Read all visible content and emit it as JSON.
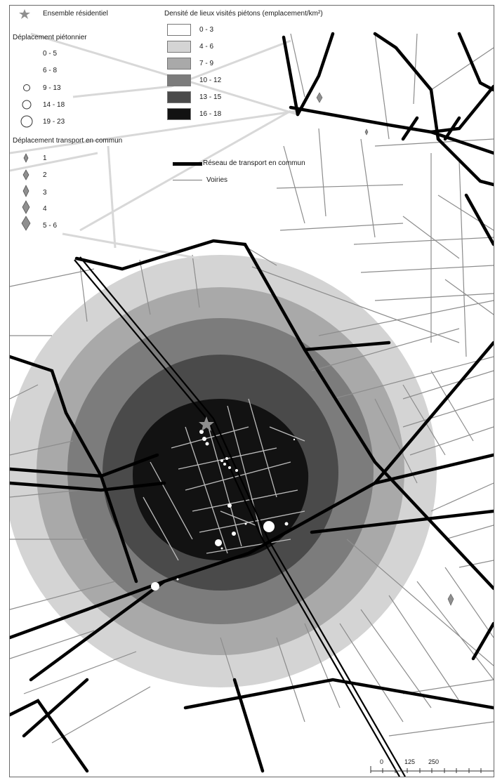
{
  "legend": {
    "residential_label": "Ensemble résidentiel",
    "walk_title": "Déplacement piétonnier",
    "walk_classes": [
      "0 - 5",
      "6 - 8",
      "9 - 13",
      "14 - 18",
      "19 - 23"
    ],
    "transit_title": "Déplacement transport en commun",
    "transit_classes": [
      "1",
      "2",
      "3",
      "4",
      "5 - 6"
    ],
    "density_title": "Densité de lieux visités piétons (emplacement/km²)",
    "density_classes": [
      {
        "label": "0 - 3",
        "color": "#ffffff"
      },
      {
        "label": "4 - 6",
        "color": "#d4d4d4"
      },
      {
        "label": "7 - 9",
        "color": "#a9a9a9"
      },
      {
        "label": "10 - 12",
        "color": "#7c7c7c"
      },
      {
        "label": "13 - 15",
        "color": "#4a4a4a"
      },
      {
        "label": "16 - 18",
        "color": "#121212"
      }
    ],
    "network_label": "Réseau de transport en commun",
    "roads_label": "Voiries"
  },
  "scale": {
    "ticks": [
      "0",
      "125",
      "250"
    ]
  },
  "colors": {
    "transit_line": "#000000",
    "road": "#8c8c8c",
    "road_on_dark": "#bdbdbd",
    "marker": "#ffffff",
    "star": "#8f8f8f"
  }
}
